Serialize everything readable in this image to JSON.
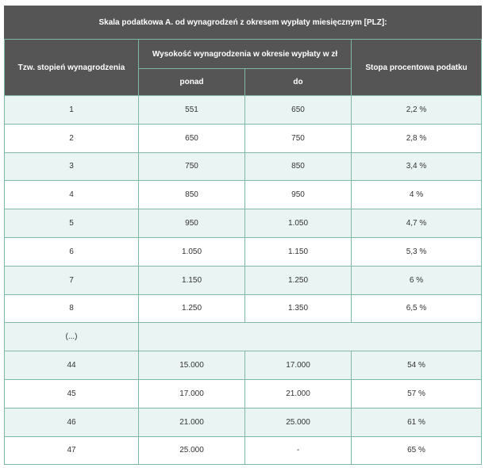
{
  "table": {
    "title": "Skala podatkowa A. od wynagrodzeń z okresem wypłaty miesięcznym [PLZ]:",
    "headers": {
      "level": "Tzw. stopień wynagrodzenia",
      "amount_group": "Wysokość wynagrodzenia w okresie wypłaty w zł",
      "from": "ponad",
      "to": "do",
      "rate": "Stopa procentowa podatku"
    },
    "rows": [
      {
        "level": "1",
        "from": "551",
        "to": "650",
        "rate": "2,2 %"
      },
      {
        "level": "2",
        "from": "650",
        "to": "750",
        "rate": "2,8 %"
      },
      {
        "level": "3",
        "from": "750",
        "to": "850",
        "rate": "3,4 %"
      },
      {
        "level": "4",
        "from": "850",
        "to": "950",
        "rate": "4 %"
      },
      {
        "level": "5",
        "from": "950",
        "to": "1.050",
        "rate": "4,7 %"
      },
      {
        "level": "6",
        "from": "1.050",
        "to": "1.150",
        "rate": "5,3 %"
      },
      {
        "level": "7",
        "from": "1.150",
        "to": "1.250",
        "rate": "6 %"
      },
      {
        "level": "8",
        "from": "1.250",
        "to": "1.350",
        "rate": "6,5 %"
      },
      {
        "level": "(...)",
        "from": null,
        "to": null,
        "rate": null
      },
      {
        "level": "44",
        "from": "15.000",
        "to": "17.000",
        "rate": "54 %"
      },
      {
        "level": "45",
        "from": "17.000",
        "to": "21.000",
        "rate": "57 %"
      },
      {
        "level": "46",
        "from": "21.000",
        "to": "25.000",
        "rate": "61 %"
      },
      {
        "level": "47",
        "from": "25.000",
        "to": "-",
        "rate": "65 %"
      }
    ]
  }
}
